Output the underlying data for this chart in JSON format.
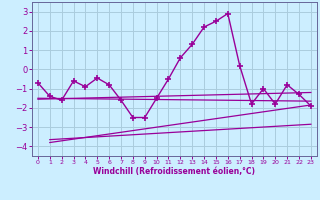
{
  "xlabel": "Windchill (Refroidissement éolien,°C)",
  "background_color": "#cceeff",
  "grid_color": "#aaccdd",
  "line_color": "#990099",
  "spine_color": "#666699",
  "xlim": [
    -0.5,
    23.5
  ],
  "ylim": [
    -4.5,
    3.5
  ],
  "yticks": [
    -4,
    -3,
    -2,
    -1,
    0,
    1,
    2,
    3
  ],
  "xticks": [
    0,
    1,
    2,
    3,
    4,
    5,
    6,
    7,
    8,
    9,
    10,
    11,
    12,
    13,
    14,
    15,
    16,
    17,
    18,
    19,
    20,
    21,
    22,
    23
  ],
  "main_x": [
    0,
    1,
    2,
    3,
    4,
    5,
    6,
    7,
    8,
    9,
    10,
    11,
    12,
    13,
    14,
    15,
    16,
    17,
    18,
    19,
    20,
    21,
    22,
    23
  ],
  "main_y": [
    -0.7,
    -1.4,
    -1.6,
    -0.6,
    -0.9,
    -0.45,
    -0.8,
    -1.6,
    -2.5,
    -2.5,
    -1.5,
    -0.5,
    0.6,
    1.3,
    2.2,
    2.5,
    2.9,
    0.2,
    -1.8,
    -1.0,
    -1.8,
    -0.8,
    -1.3,
    -1.9
  ],
  "trend1_x": [
    0,
    23
  ],
  "trend1_y": [
    -1.5,
    -1.65
  ],
  "trend2_x": [
    0,
    23
  ],
  "trend2_y": [
    -1.55,
    -1.2
  ],
  "trend3_x": [
    1,
    23
  ],
  "trend3_y": [
    -3.8,
    -1.85
  ],
  "trend4_x": [
    1,
    23
  ],
  "trend4_y": [
    -3.65,
    -2.85
  ]
}
